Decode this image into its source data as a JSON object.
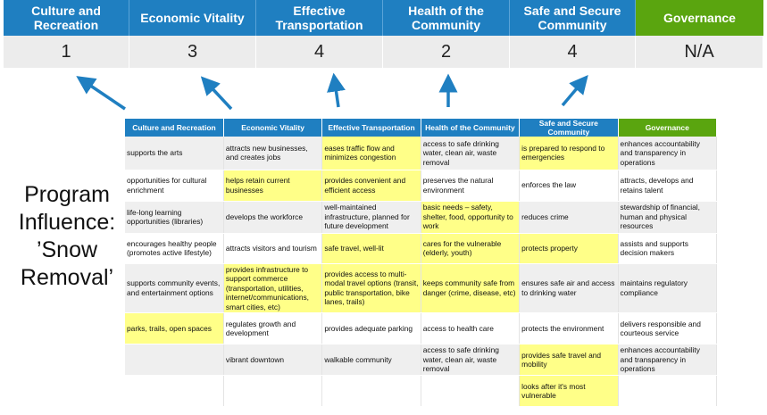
{
  "columns": [
    {
      "label": "Culture and Recreation",
      "score": "1"
    },
    {
      "label": "Economic Vitality",
      "score": "3"
    },
    {
      "label": "Effective Transportation",
      "score": "4"
    },
    {
      "label": "Health of the Community",
      "score": "2"
    },
    {
      "label": "Safe and Secure Community",
      "score": "4"
    },
    {
      "label": "Governance",
      "score": "N/A"
    }
  ],
  "program_influence": "Program Influence: ’Snow Removal’",
  "colors": {
    "header_blue": "#1f7fc1",
    "governance_green": "#5aa50f",
    "highlight_yellow": "#ffff88",
    "arrow_blue": "#1f7fc1"
  },
  "table": {
    "headers": [
      "Culture and Recreation",
      "Economic Vitality",
      "Effective Transportation",
      "Health of the Community",
      "Safe and Secure Community",
      "Governance"
    ],
    "rows": [
      [
        {
          "t": "supports the arts"
        },
        {
          "t": "attracts new businesses, and creates jobs"
        },
        {
          "t": "eases traffic flow and minimizes congestion",
          "hl": true
        },
        {
          "t": "access to safe drinking water, clean air, waste removal"
        },
        {
          "t": "is prepared to respond to emergencies",
          "hl": true
        },
        {
          "t": "enhances accountability and transparency in operations"
        }
      ],
      [
        {
          "t": "opportunities for cultural enrichment"
        },
        {
          "t": "helps retain current businesses",
          "hl": true
        },
        {
          "t": "provides convenient and efficient access",
          "hl": true
        },
        {
          "t": "preserves the natural environment"
        },
        {
          "t": "enforces the law"
        },
        {
          "t": "attracts, develops and retains talent"
        }
      ],
      [
        {
          "t": "life-long learning opportunities (libraries)"
        },
        {
          "t": "develops the workforce"
        },
        {
          "t": "well-maintained infrastructure, planned for future development"
        },
        {
          "t": "basic needs – safety, shelter, food, opportunity to work",
          "hl": true
        },
        {
          "t": "reduces crime"
        },
        {
          "t": "stewardship of financial, human and physical resources"
        }
      ],
      [
        {
          "t": "encourages healthy people (promotes active lifestyle)"
        },
        {
          "t": "attracts visitors and tourism"
        },
        {
          "t": "safe travel, well-lit",
          "hl": true
        },
        {
          "t": "cares for the vulnerable (elderly, youth)",
          "hl": true
        },
        {
          "t": "protects property",
          "hl": true
        },
        {
          "t": "assists and supports decision makers"
        }
      ],
      [
        {
          "t": "supports community events, and entertainment options"
        },
        {
          "t": "provides infrastructure to support commerce (transportation, utilities, internet/communications, smart cities, etc)",
          "hl": true
        },
        {
          "t": "provides access to multi-modal travel options (transit, public transportation, bike lanes, trails)",
          "hl": true
        },
        {
          "t": "keeps community safe from danger (crime, disease, etc)",
          "hl": true
        },
        {
          "t": "ensures safe air and access to drinking water"
        },
        {
          "t": "maintains regulatory compliance"
        }
      ],
      [
        {
          "t": "parks, trails, open spaces",
          "hl": true
        },
        {
          "t": "regulates growth and development"
        },
        {
          "t": "provides adequate parking"
        },
        {
          "t": "access to health care"
        },
        {
          "t": "protects the environment"
        },
        {
          "t": "delivers responsible and courteous service"
        }
      ],
      [
        {
          "t": ""
        },
        {
          "t": "vibrant downtown"
        },
        {
          "t": "walkable community"
        },
        {
          "t": "access to safe drinking water, clean air, waste removal"
        },
        {
          "t": "provides safe travel and mobility",
          "hl": true
        },
        {
          "t": "enhances accountability and transparency in operations"
        }
      ],
      [
        {
          "t": ""
        },
        {
          "t": ""
        },
        {
          "t": ""
        },
        {
          "t": ""
        },
        {
          "t": "looks after it's most vulnerable",
          "hl": true
        },
        {
          "t": ""
        }
      ]
    ]
  }
}
